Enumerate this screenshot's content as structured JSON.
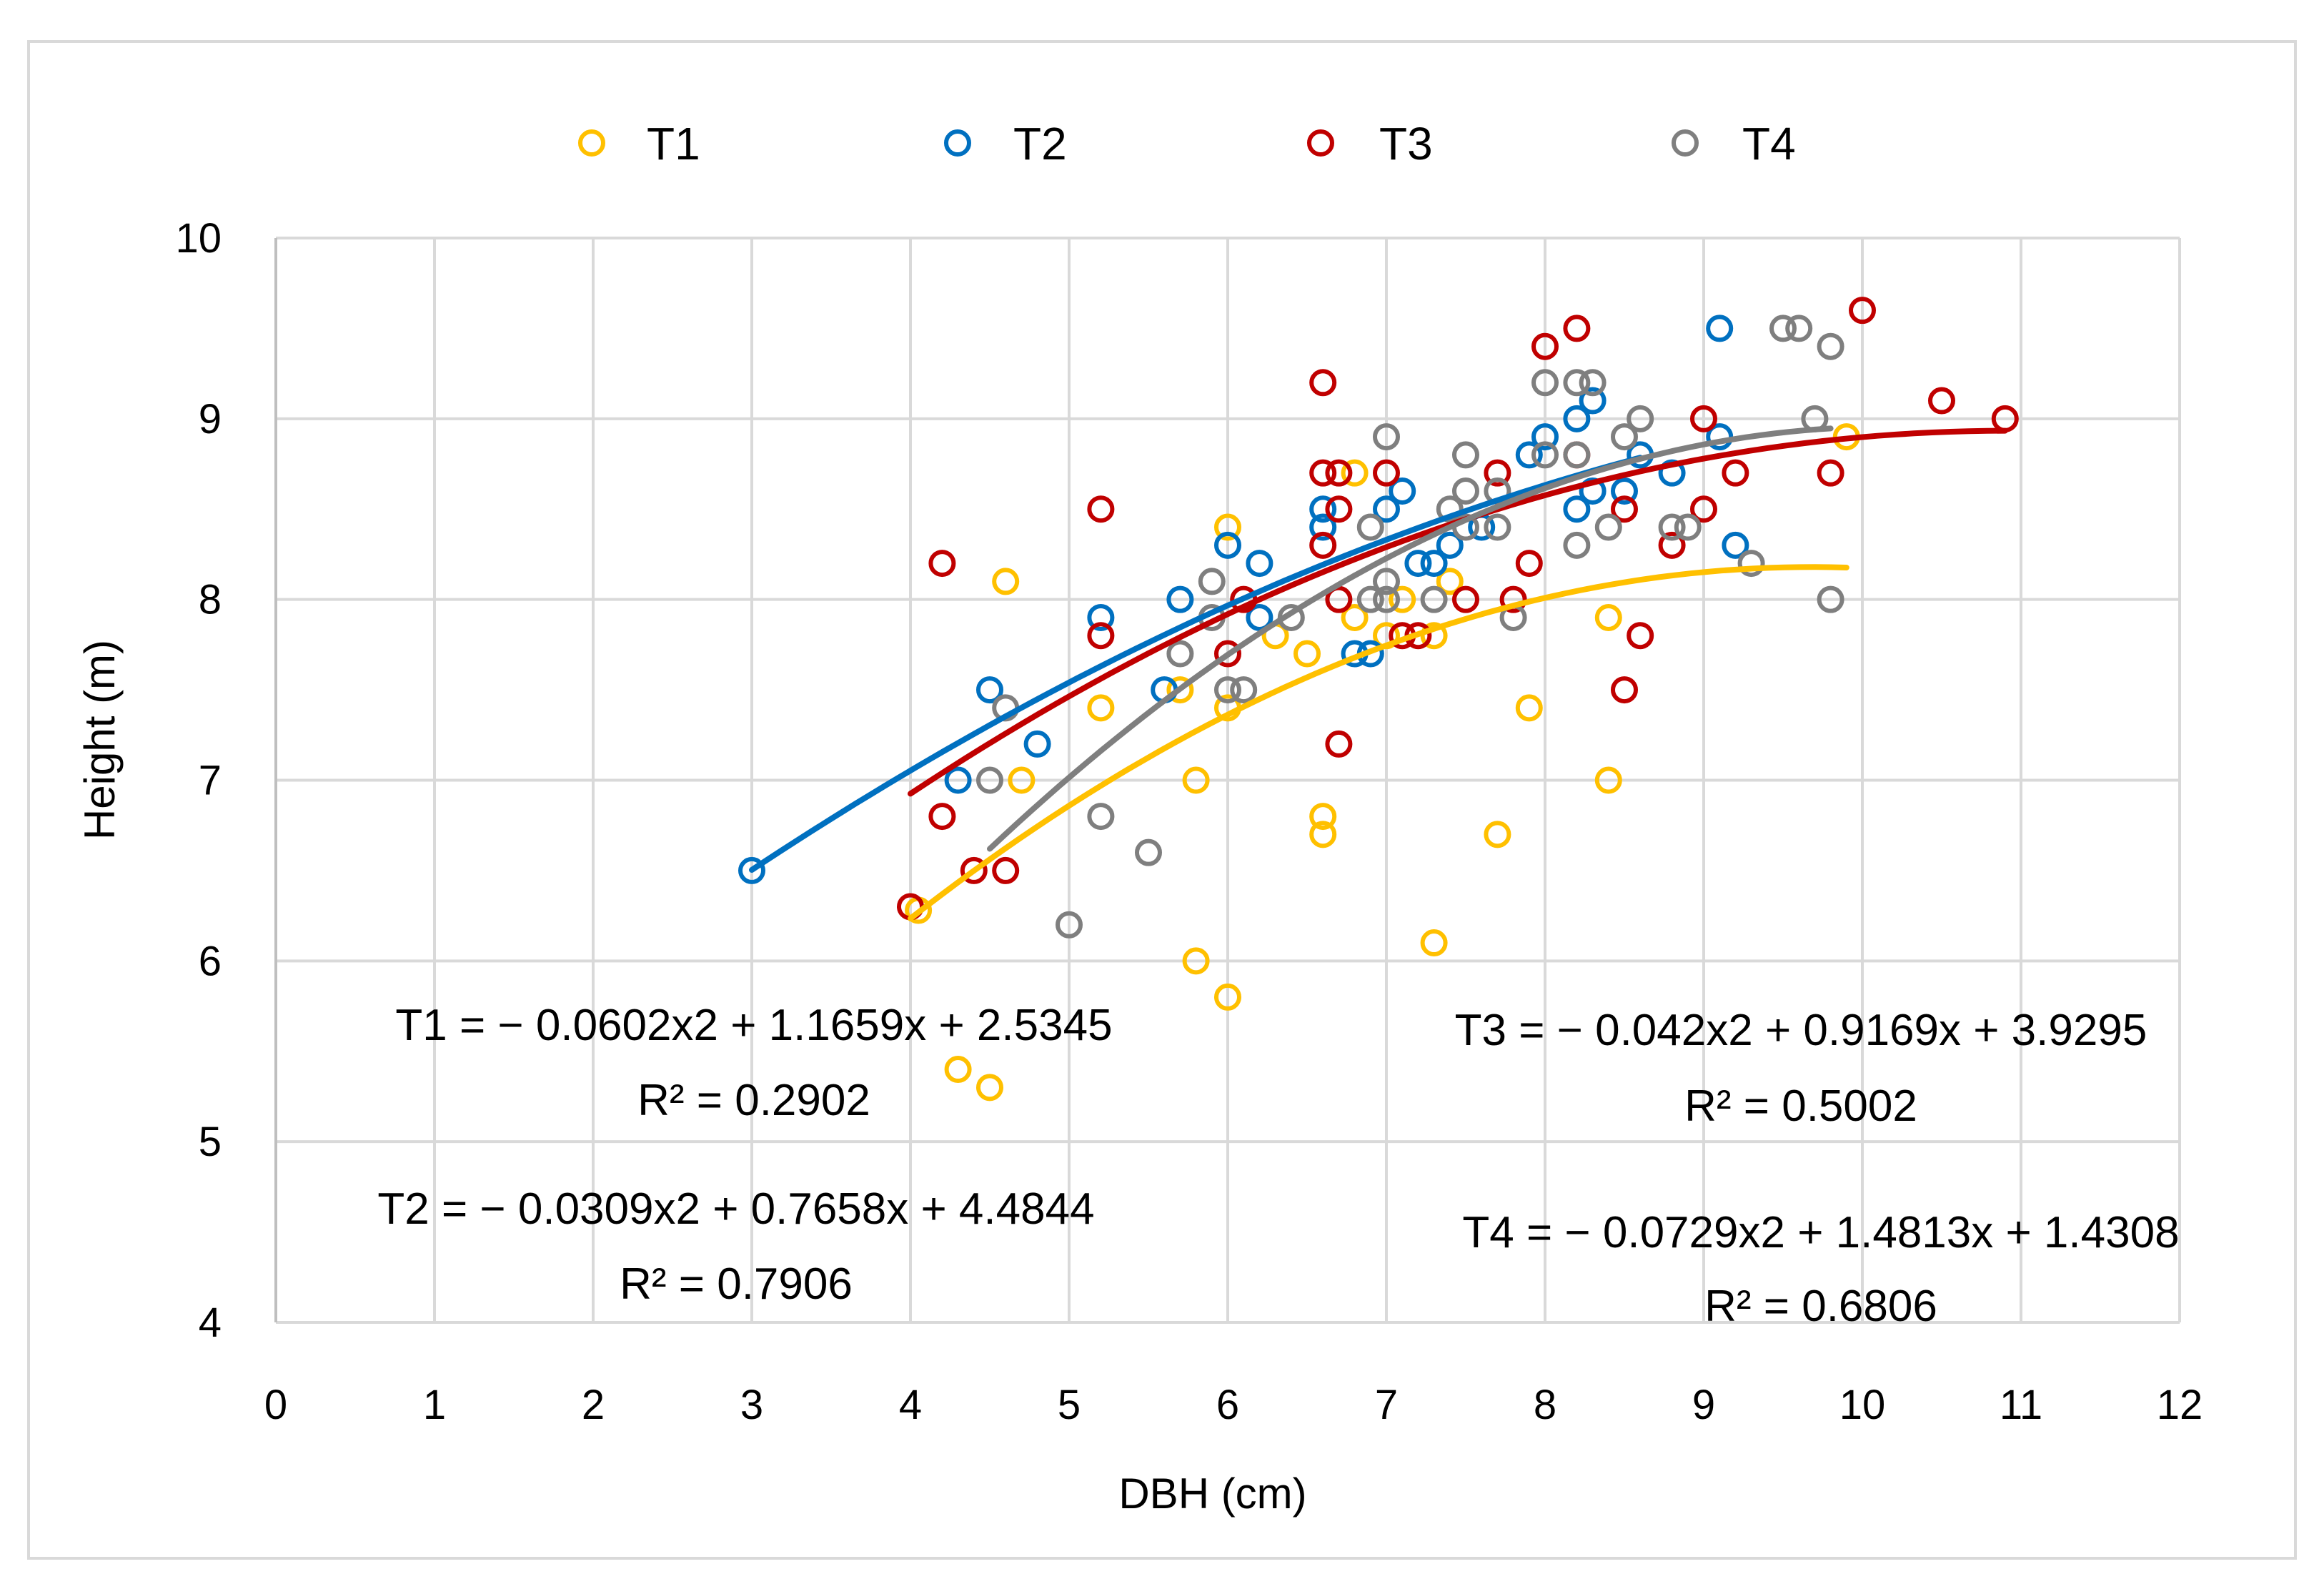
{
  "chart_data": {
    "type": "scatter",
    "title": "",
    "xlabel": "DBH (cm)",
    "ylabel": "Height (m)",
    "xlim": [
      0,
      12
    ],
    "ylim": [
      4,
      10
    ],
    "x_ticks": [
      "0",
      "1",
      "2",
      "3",
      "4",
      "5",
      "6",
      "7",
      "8",
      "9",
      "10",
      "11",
      "12"
    ],
    "y_ticks": [
      "4",
      "5",
      "6",
      "7",
      "8",
      "9",
      "10"
    ],
    "grid": true,
    "legend_position": "top",
    "marker": "hollow-circle",
    "trendline": "polynomial-order-2",
    "series": [
      {
        "name": "T1",
        "color": "#FFC000",
        "trend_range": [
          4.0,
          9.9
        ],
        "coefficients": [
          -0.0602,
          1.1659,
          2.5345
        ],
        "equation": "T1 = − 0.0602x2 + 1.1659x + 2.5345",
        "r2": "R² = 0.2902",
        "points": [
          [
            4.05,
            6.28
          ],
          [
            4.3,
            5.4
          ],
          [
            4.5,
            5.3
          ],
          [
            4.6,
            8.1
          ],
          [
            4.7,
            7.0
          ],
          [
            5.2,
            7.4
          ],
          [
            5.7,
            7.5
          ],
          [
            5.8,
            7.0
          ],
          [
            5.8,
            6.0
          ],
          [
            6.0,
            8.4
          ],
          [
            6.0,
            7.4
          ],
          [
            6.0,
            5.8
          ],
          [
            6.3,
            7.8
          ],
          [
            6.5,
            7.7
          ],
          [
            6.6,
            6.8
          ],
          [
            6.6,
            6.7
          ],
          [
            6.8,
            8.7
          ],
          [
            6.8,
            7.9
          ],
          [
            7.0,
            7.8
          ],
          [
            7.1,
            8.0
          ],
          [
            7.3,
            7.8
          ],
          [
            7.3,
            6.1
          ],
          [
            7.4,
            8.1
          ],
          [
            7.7,
            6.7
          ],
          [
            7.9,
            7.4
          ],
          [
            8.4,
            7.9
          ],
          [
            8.4,
            7.0
          ],
          [
            9.9,
            8.9
          ]
        ]
      },
      {
        "name": "T2",
        "color": "#0070C0",
        "trend_range": [
          3.0,
          8.6
        ],
        "coefficients": [
          -0.0309,
          0.7658,
          4.4844
        ],
        "equation": "T2 = − 0.0309x2 + 0.7658x + 4.4844",
        "r2": "R² = 0.7906",
        "points": [
          [
            3.0,
            6.5
          ],
          [
            4.3,
            7.0
          ],
          [
            4.5,
            7.5
          ],
          [
            4.8,
            7.2
          ],
          [
            5.2,
            7.9
          ],
          [
            5.6,
            7.5
          ],
          [
            5.7,
            8.0
          ],
          [
            6.0,
            8.3
          ],
          [
            6.2,
            8.2
          ],
          [
            6.2,
            7.9
          ],
          [
            6.6,
            8.5
          ],
          [
            6.6,
            8.4
          ],
          [
            6.8,
            7.7
          ],
          [
            6.9,
            7.7
          ],
          [
            7.0,
            8.5
          ],
          [
            7.1,
            8.6
          ],
          [
            7.2,
            8.2
          ],
          [
            7.3,
            8.2
          ],
          [
            7.4,
            8.3
          ],
          [
            7.6,
            8.4
          ],
          [
            7.9,
            8.8
          ],
          [
            8.0,
            8.9
          ],
          [
            8.2,
            9.0
          ],
          [
            8.2,
            8.5
          ],
          [
            8.3,
            9.1
          ],
          [
            8.3,
            8.6
          ],
          [
            8.5,
            8.6
          ],
          [
            8.6,
            8.8
          ],
          [
            8.8,
            8.7
          ],
          [
            9.1,
            9.5
          ],
          [
            9.1,
            8.9
          ],
          [
            9.2,
            8.3
          ]
        ]
      },
      {
        "name": "T3",
        "color": "#C00000",
        "trend_range": [
          4.0,
          10.9
        ],
        "coefficients": [
          -0.042,
          0.9169,
          3.9295
        ],
        "equation": "T3 = − 0.042x2 + 0.9169x + 3.9295",
        "r2": "R² = 0.5002",
        "points": [
          [
            4.0,
            6.3
          ],
          [
            4.2,
            8.2
          ],
          [
            4.2,
            6.8
          ],
          [
            4.4,
            6.5
          ],
          [
            4.6,
            6.5
          ],
          [
            5.2,
            8.5
          ],
          [
            5.2,
            7.8
          ],
          [
            6.0,
            7.7
          ],
          [
            6.1,
            8.0
          ],
          [
            6.6,
            9.2
          ],
          [
            6.6,
            8.7
          ],
          [
            6.6,
            8.3
          ],
          [
            6.7,
            8.7
          ],
          [
            6.7,
            8.5
          ],
          [
            6.7,
            8.0
          ],
          [
            6.7,
            7.2
          ],
          [
            7.0,
            8.7
          ],
          [
            7.1,
            7.8
          ],
          [
            7.2,
            7.8
          ],
          [
            7.5,
            8.0
          ],
          [
            7.7,
            8.7
          ],
          [
            7.8,
            8.0
          ],
          [
            7.9,
            8.2
          ],
          [
            8.0,
            9.4
          ],
          [
            8.2,
            9.5
          ],
          [
            8.2,
            8.8
          ],
          [
            8.5,
            8.5
          ],
          [
            8.5,
            7.5
          ],
          [
            8.6,
            7.8
          ],
          [
            8.8,
            8.3
          ],
          [
            9.0,
            9.0
          ],
          [
            9.0,
            8.5
          ],
          [
            9.2,
            8.7
          ],
          [
            9.8,
            8.7
          ],
          [
            10.0,
            9.6
          ],
          [
            10.5,
            9.1
          ],
          [
            10.9,
            9.0
          ]
        ]
      },
      {
        "name": "T4",
        "color": "#7F7F7F",
        "trend_range": [
          4.5,
          9.8
        ],
        "coefficients": [
          -0.0729,
          1.4813,
          1.4308
        ],
        "equation": "T4 = − 0.0729x2 + 1.4813x + 1.4308",
        "r2": "R² = 0.6806",
        "points": [
          [
            4.5,
            7.0
          ],
          [
            4.6,
            7.4
          ],
          [
            5.0,
            6.2
          ],
          [
            5.2,
            6.8
          ],
          [
            5.5,
            6.6
          ],
          [
            5.7,
            7.7
          ],
          [
            5.9,
            8.1
          ],
          [
            5.9,
            7.9
          ],
          [
            6.0,
            7.5
          ],
          [
            6.1,
            7.5
          ],
          [
            6.4,
            7.9
          ],
          [
            6.9,
            8.4
          ],
          [
            6.9,
            8.0
          ],
          [
            7.0,
            8.9
          ],
          [
            7.0,
            8.1
          ],
          [
            7.0,
            8.0
          ],
          [
            7.3,
            8.0
          ],
          [
            7.4,
            8.5
          ],
          [
            7.5,
            8.8
          ],
          [
            7.5,
            8.6
          ],
          [
            7.5,
            8.4
          ],
          [
            7.7,
            8.6
          ],
          [
            7.7,
            8.4
          ],
          [
            7.8,
            7.9
          ],
          [
            8.0,
            9.2
          ],
          [
            8.0,
            8.8
          ],
          [
            8.2,
            9.2
          ],
          [
            8.2,
            8.8
          ],
          [
            8.2,
            8.3
          ],
          [
            8.3,
            9.2
          ],
          [
            8.4,
            8.4
          ],
          [
            8.5,
            8.9
          ],
          [
            8.6,
            9.0
          ],
          [
            8.8,
            8.4
          ],
          [
            8.9,
            8.4
          ],
          [
            9.3,
            8.2
          ],
          [
            9.5,
            9.5
          ],
          [
            9.6,
            9.5
          ],
          [
            9.7,
            9.0
          ],
          [
            9.8,
            9.4
          ],
          [
            9.8,
            8.0
          ]
        ]
      }
    ]
  }
}
